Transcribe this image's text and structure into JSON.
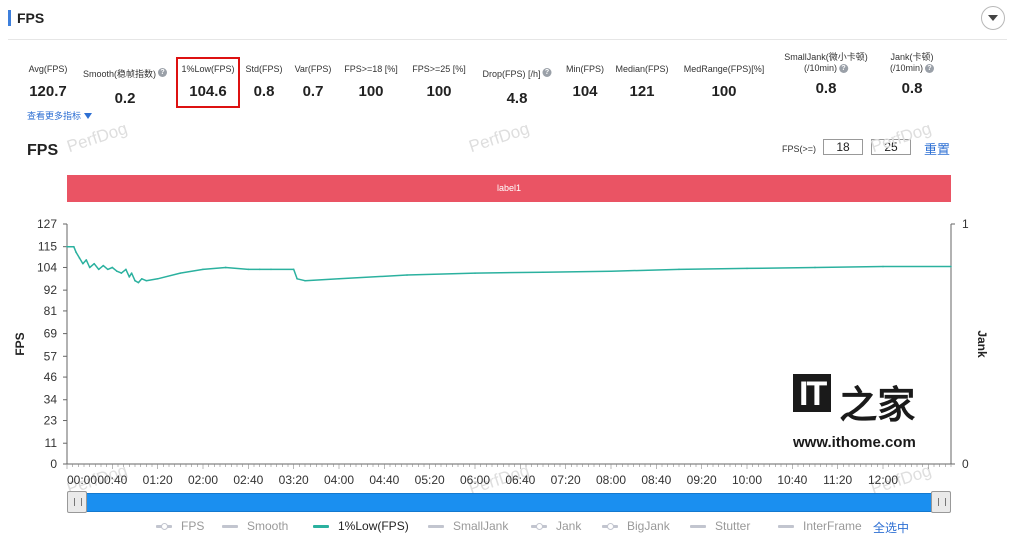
{
  "header": {
    "title": "FPS"
  },
  "metrics": [
    {
      "label": "Avg(FPS)",
      "value": "120.7",
      "help": false
    },
    {
      "label": "Smooth(稳帧指数)",
      "value": "0.2",
      "help": true
    },
    {
      "label": "1%Low(FPS)",
      "value": "104.6",
      "help": false
    },
    {
      "label": "Std(FPS)",
      "value": "0.8",
      "help": false
    },
    {
      "label": "Var(FPS)",
      "value": "0.7",
      "help": false
    },
    {
      "label": "FPS>=18 [%]",
      "value": "100",
      "help": false
    },
    {
      "label": "FPS>=25 [%]",
      "value": "100",
      "help": false
    },
    {
      "label": "Drop(FPS) [/h]",
      "value": "4.8",
      "help": true
    },
    {
      "label": "Min(FPS)",
      "value": "104",
      "help": false
    },
    {
      "label": "Median(FPS)",
      "value": "121",
      "help": false
    },
    {
      "label": "MedRange(FPS)[%]",
      "value": "100",
      "help": false
    },
    {
      "label": "SmallJank(微小卡顿)",
      "label2": "(/10min)",
      "value": "0.8",
      "help": true
    },
    {
      "label": "Jank(卡顿)",
      "label2": "(/10min)",
      "value": "0.8",
      "help": true
    }
  ],
  "more_link": "查看更多指标",
  "controls": {
    "fps_label": "FPS(>=)",
    "fps_threshold_1": "18",
    "fps_threshold_2": "25",
    "reset": "重置"
  },
  "watermark_text": "PerfDog",
  "logo": {
    "it": "IT",
    "cn": "之家",
    "url": "www.ithome.com"
  },
  "legend": [
    {
      "name": "FPS",
      "active": false,
      "dot": true
    },
    {
      "name": "Smooth",
      "active": false,
      "dot": false
    },
    {
      "name": "1%Low(FPS)",
      "active": true,
      "dot": false
    },
    {
      "name": "SmallJank",
      "active": false,
      "dot": false
    },
    {
      "name": "Jank",
      "active": false,
      "dot": true
    },
    {
      "name": "BigJank",
      "active": false,
      "dot": true
    },
    {
      "name": "Stutter",
      "active": false,
      "dot": false
    },
    {
      "name": "InterFrame",
      "active": false,
      "dot": false
    }
  ],
  "select_all": "全选中",
  "colors": {
    "series": "#2bb19f",
    "band": "#ea5464",
    "accent": "#2d6fd3"
  },
  "chart_data": {
    "type": "line",
    "title": "FPS",
    "ylabel": "FPS",
    "y2label": "Jank",
    "band_label": "label1",
    "ylim": [
      0,
      127
    ],
    "y2lim": [
      0,
      1
    ],
    "yticks": [
      0,
      11,
      23,
      34,
      46,
      57,
      69,
      81,
      92,
      104,
      115,
      127
    ],
    "y2ticks": [
      0,
      1
    ],
    "xlim": [
      0,
      780
    ],
    "xticks": [
      {
        "t": 0,
        "label": "00:00"
      },
      {
        "t": 40,
        "label": "00:40"
      },
      {
        "t": 80,
        "label": "01:20"
      },
      {
        "t": 120,
        "label": "02:00"
      },
      {
        "t": 160,
        "label": "02:40"
      },
      {
        "t": 200,
        "label": "03:20"
      },
      {
        "t": 240,
        "label": "04:00"
      },
      {
        "t": 280,
        "label": "04:40"
      },
      {
        "t": 320,
        "label": "05:20"
      },
      {
        "t": 360,
        "label": "06:00"
      },
      {
        "t": 400,
        "label": "06:40"
      },
      {
        "t": 440,
        "label": "07:20"
      },
      {
        "t": 480,
        "label": "08:00"
      },
      {
        "t": 520,
        "label": "08:40"
      },
      {
        "t": 560,
        "label": "09:20"
      },
      {
        "t": 600,
        "label": "10:00"
      },
      {
        "t": 640,
        "label": "10:40"
      },
      {
        "t": 680,
        "label": "11:20"
      },
      {
        "t": 720,
        "label": "12:00"
      }
    ],
    "series": [
      {
        "name": "1%Low(FPS)",
        "x": [
          0,
          6,
          8,
          11,
          14,
          17,
          20,
          24,
          28,
          32,
          36,
          40,
          44,
          48,
          52,
          55,
          57,
          60,
          63,
          66,
          70,
          80,
          100,
          120,
          140,
          160,
          170,
          180,
          200,
          203,
          210,
          240,
          300,
          360,
          420,
          480,
          540,
          600,
          660,
          720,
          780
        ],
        "y": [
          115,
          115,
          112,
          109,
          106,
          108,
          104,
          106,
          103,
          105,
          103,
          104,
          102,
          101,
          103,
          99,
          101,
          97,
          96,
          98,
          97,
          98,
          101,
          103,
          104,
          103,
          103,
          103,
          103,
          98,
          97,
          98,
          100,
          101,
          101.5,
          102,
          103,
          103.5,
          104,
          104.5,
          104.5
        ]
      }
    ]
  }
}
